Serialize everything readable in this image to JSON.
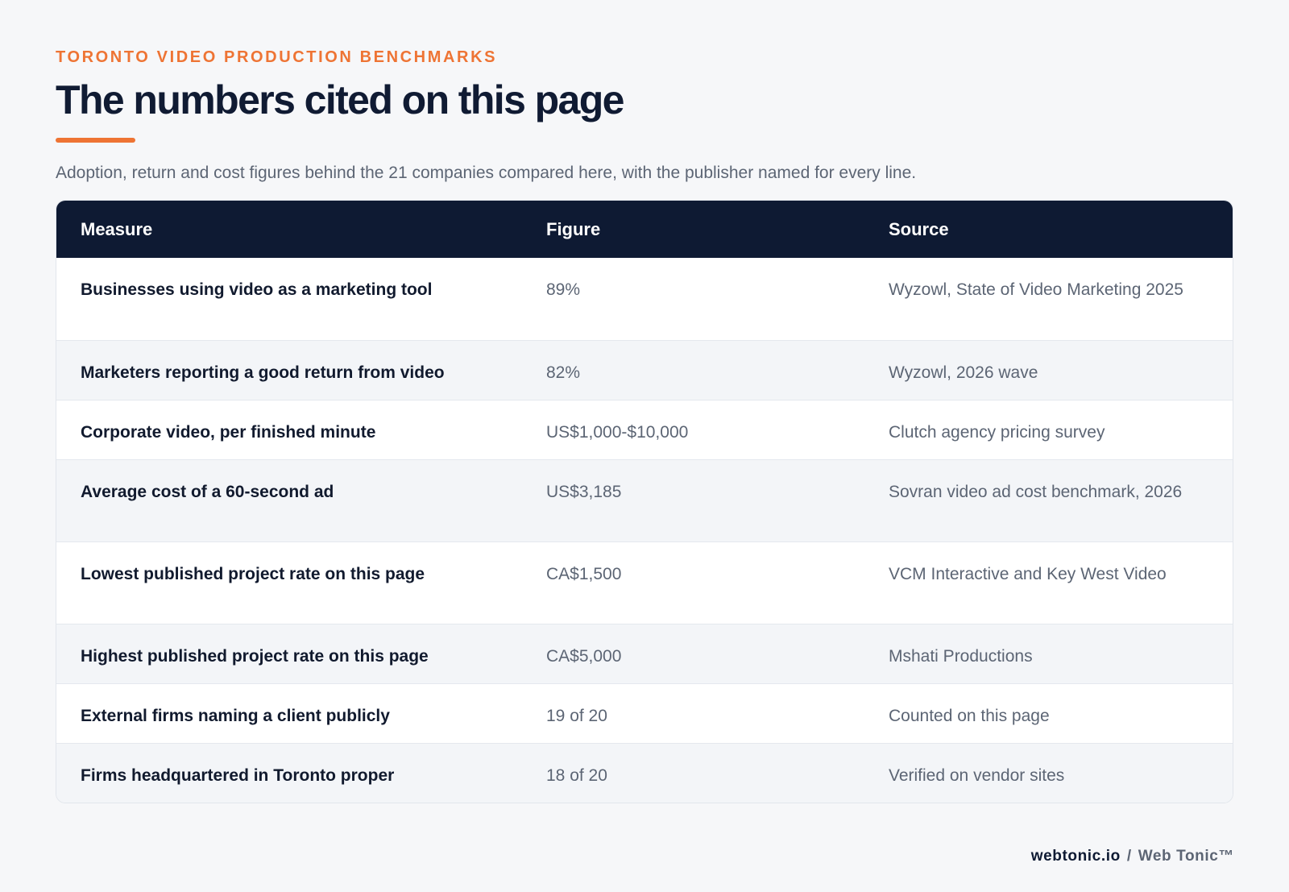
{
  "header": {
    "eyebrow": "TORONTO VIDEO PRODUCTION BENCHMARKS",
    "title": "The numbers cited on this page",
    "subtitle": "Adoption, return and cost figures behind the 21 companies compared here, with the publisher named for every line."
  },
  "table": {
    "columns": [
      "Measure",
      "Figure",
      "Source"
    ],
    "rows": [
      {
        "measure": "Businesses using video as a marketing tool",
        "figure": "89%",
        "source": "Wyzowl, State of Video Marketing 2025"
      },
      {
        "measure": "Marketers reporting a good return from video",
        "figure": "82%",
        "source": "Wyzowl, 2026 wave"
      },
      {
        "measure": "Corporate video, per finished minute",
        "figure": "US$1,000-$10,000",
        "source": "Clutch agency pricing survey"
      },
      {
        "measure": "Average cost of a 60-second ad",
        "figure": "US$3,185",
        "source": "Sovran video ad cost benchmark, 2026"
      },
      {
        "measure": "Lowest published project rate on this page",
        "figure": "CA$1,500",
        "source": "VCM Interactive and Key West Video"
      },
      {
        "measure": "Highest published project rate on this page",
        "figure": "CA$5,000",
        "source": "Mshati Productions"
      },
      {
        "measure": "External firms naming a client publicly",
        "figure": "19 of 20",
        "source": "Counted on this page"
      },
      {
        "measure": "Firms headquartered in Toronto proper",
        "figure": "18 of 20",
        "source": "Verified on vendor sites"
      }
    ]
  },
  "footer": {
    "site": "webtonic.io",
    "separator": "/",
    "brand": "Web Tonic™"
  },
  "colors": {
    "accent": "#ee7434",
    "navy": "#0e1a33",
    "muted": "#5c6574",
    "background": "#f6f7f9"
  }
}
